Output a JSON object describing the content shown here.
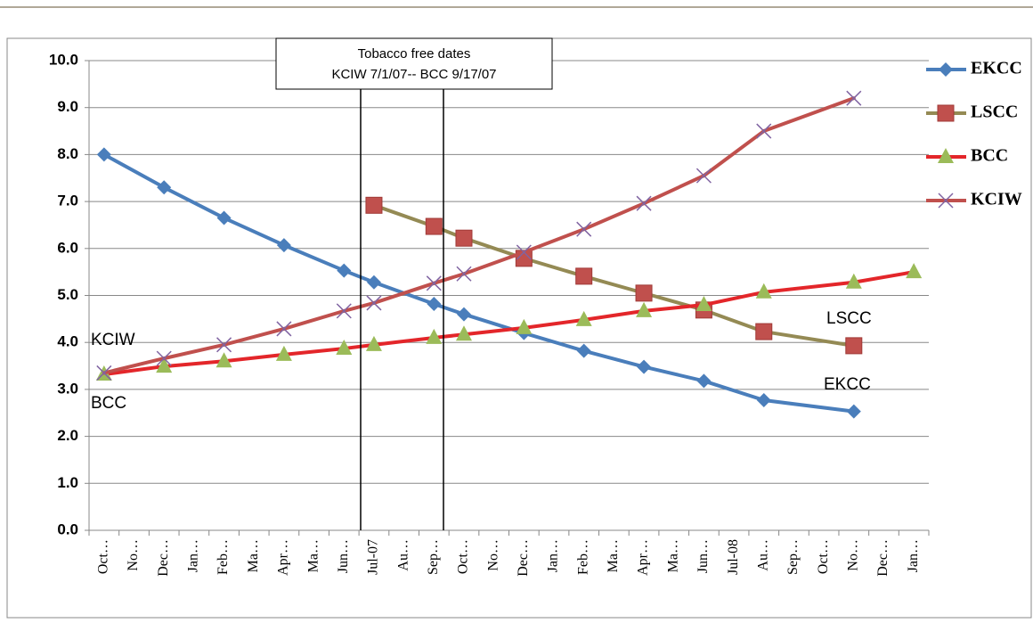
{
  "chart_data": {
    "type": "line",
    "categories": [
      "Oct…",
      "No…",
      "Dec…",
      "Jan…",
      "Feb…",
      "Ma…",
      "Apr…",
      "Ma…",
      "Jun…",
      "Jul-07",
      "Au…",
      "Sep…",
      "Oct…",
      "No…",
      "Dec…",
      "Jan…",
      "Feb…",
      "Ma…",
      "Apr…",
      "Ma…",
      "Jun…",
      "Jul-08",
      "Au…",
      "Sep…",
      "Oct…",
      "No…",
      "Dec…",
      "Jan…"
    ],
    "series": [
      {
        "name": "EKCC",
        "color": "#4a7ebb",
        "marker": "diamond",
        "marker_color": "#4a7ebb",
        "values": [
          8.0,
          null,
          7.3,
          null,
          6.65,
          null,
          6.07,
          null,
          5.53,
          5.28,
          null,
          4.82,
          4.6,
          null,
          4.2,
          null,
          3.82,
          null,
          3.48,
          null,
          3.18,
          null,
          2.77,
          null,
          null,
          2.53,
          null,
          null
        ]
      },
      {
        "name": "LSCC",
        "color": "#948a54",
        "marker": "square",
        "marker_color": "#c0504d",
        "values": [
          null,
          null,
          null,
          null,
          null,
          null,
          null,
          null,
          null,
          6.92,
          null,
          6.47,
          6.22,
          null,
          5.79,
          null,
          5.41,
          null,
          5.05,
          null,
          4.69,
          null,
          4.23,
          null,
          null,
          3.93,
          null,
          null
        ]
      },
      {
        "name": "BCC",
        "color": "#e3262a",
        "marker": "triangle",
        "marker_color": "#9bbb59",
        "values": [
          3.32,
          null,
          3.49,
          null,
          3.6,
          null,
          3.74,
          null,
          3.87,
          3.95,
          null,
          4.1,
          4.17,
          null,
          4.31,
          null,
          4.48,
          null,
          4.67,
          null,
          4.8,
          null,
          5.07,
          null,
          null,
          5.28,
          null,
          5.5
        ]
      },
      {
        "name": "KCIW",
        "color": "#c0504d",
        "marker": "x",
        "marker_color": "#8064a2",
        "values": [
          3.35,
          null,
          3.66,
          null,
          3.95,
          null,
          4.29,
          null,
          4.67,
          4.84,
          null,
          5.26,
          5.46,
          null,
          5.92,
          null,
          6.41,
          null,
          6.96,
          null,
          7.55,
          null,
          8.5,
          null,
          null,
          9.2,
          null,
          null
        ]
      }
    ],
    "ylim": [
      0,
      10
    ],
    "yticks": [
      {
        "value": 0,
        "label": "0.0"
      },
      {
        "value": 1,
        "label": "1.0"
      },
      {
        "value": 2,
        "label": "2.0"
      },
      {
        "value": 3,
        "label": "3.0"
      },
      {
        "value": 4,
        "label": "4.0"
      },
      {
        "value": 5,
        "label": "5.0"
      },
      {
        "value": 6,
        "label": "6.0"
      },
      {
        "value": 7,
        "label": "7.0"
      },
      {
        "value": 8,
        "label": "8.0"
      },
      {
        "value": 9,
        "label": "9.0"
      },
      {
        "value": 10,
        "label": "10.0"
      }
    ],
    "grid": true,
    "legend": "right",
    "annotation": [
      "Tobacco free dates",
      "KCIW 7/1/07-- BCC 9/17/07"
    ],
    "line_labels": [
      "KCIW",
      "BCC",
      "LSCC",
      "EKCC"
    ]
  }
}
